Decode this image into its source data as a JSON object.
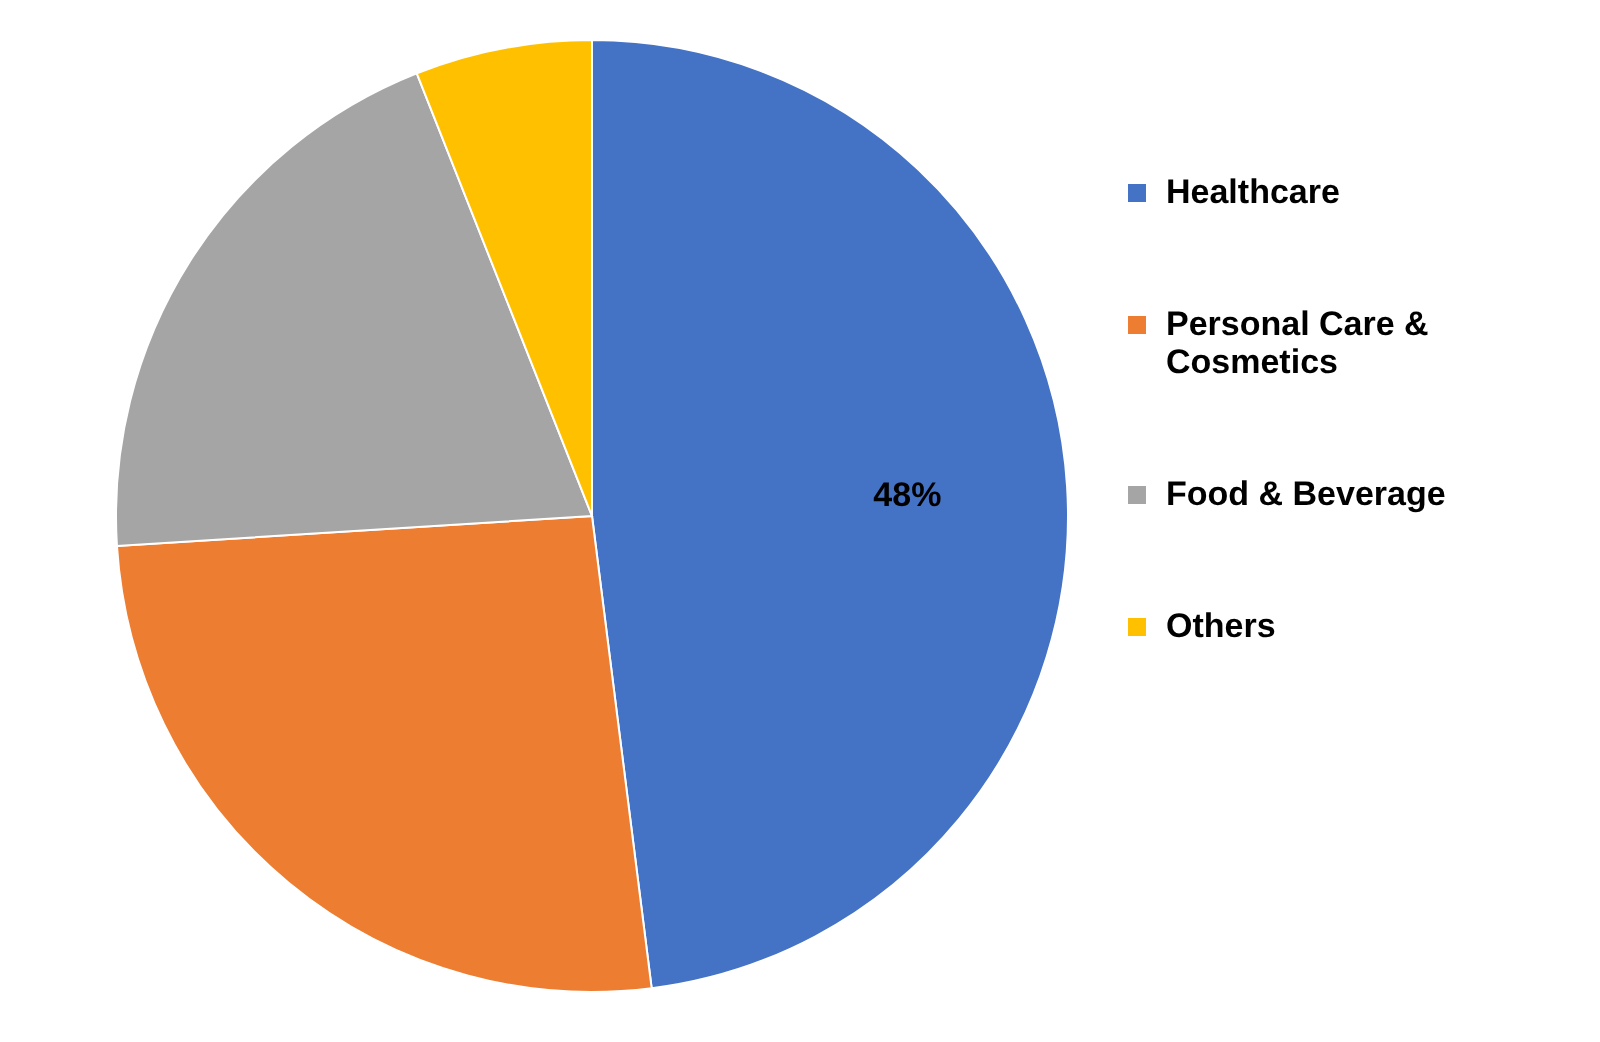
{
  "chart_data": {
    "type": "pie",
    "categories": [
      "Healthcare",
      "Personal Care & Cosmetics",
      "Food & Beverage",
      "Others"
    ],
    "values": [
      48,
      26,
      20,
      6
    ],
    "colors": [
      "#4472c4",
      "#ed7d31",
      "#a5a5a5",
      "#ffc000"
    ],
    "value_labels": [
      "48%",
      null,
      null,
      null
    ],
    "legend": "right"
  }
}
